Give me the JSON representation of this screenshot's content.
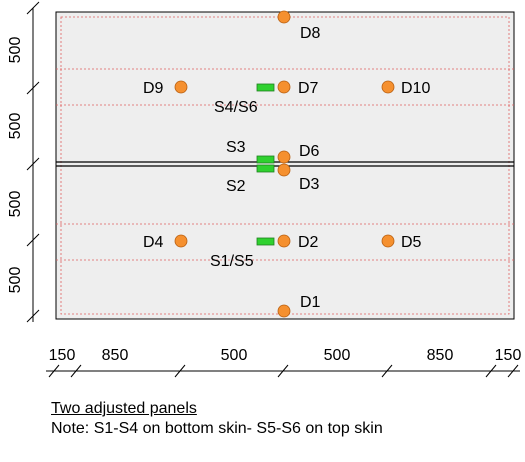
{
  "diagram": {
    "vertical_dimensions": [
      "500",
      "500",
      "500",
      "500"
    ],
    "horizontal_dimensions": [
      "150",
      "850",
      "500",
      "500",
      "850",
      "150"
    ],
    "sensors": [
      {
        "id": "d8",
        "label": "D8"
      },
      {
        "id": "d9",
        "label": "D9"
      },
      {
        "id": "d7",
        "label": "D7"
      },
      {
        "id": "d10",
        "label": "D10"
      },
      {
        "id": "d6",
        "label": "D6"
      },
      {
        "id": "d3",
        "label": "D3"
      },
      {
        "id": "d4",
        "label": "D4"
      },
      {
        "id": "d2",
        "label": "D2"
      },
      {
        "id": "d5",
        "label": "D5"
      },
      {
        "id": "d1",
        "label": "D1"
      }
    ],
    "strain_gauges": [
      {
        "id": "s4-s6",
        "label": "S4/S6"
      },
      {
        "id": "s3",
        "label": "S3"
      },
      {
        "id": "s2",
        "label": "S2"
      },
      {
        "id": "s1-s5",
        "label": "S1/S5"
      }
    ],
    "colors": {
      "panel_fill": "#eeeeee",
      "sensor": "#f5902f",
      "gauge": "#2fd12f",
      "guide_lines": "#e06060"
    }
  },
  "caption": {
    "title": "Two adjusted panels",
    "note": "Note: S1-S4 on bottom skin- S5-S6 on top skin"
  }
}
